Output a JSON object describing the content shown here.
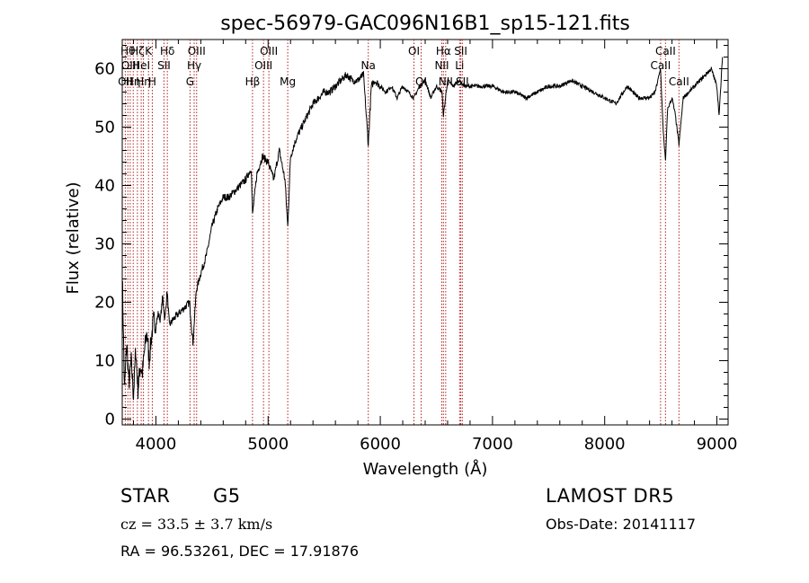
{
  "chart_data": {
    "type": "line",
    "title": "spec-56979-GAC096N16B1_sp15-121.fits",
    "xlabel": "Wavelength (Å)",
    "ylabel": "Flux (relative)",
    "xlim": [
      3700,
      9100
    ],
    "ylim": [
      -1,
      65
    ],
    "xticks": [
      4000,
      5000,
      6000,
      7000,
      8000,
      9000
    ],
    "yticks": [
      0,
      10,
      20,
      30,
      40,
      50,
      60
    ],
    "grid": false,
    "line_color": "#000000",
    "marker_color": "#b22222",
    "series": [
      {
        "x": [
          3700,
          3720,
          3740,
          3760,
          3780,
          3800,
          3820,
          3840,
          3860,
          3880,
          3900,
          3920,
          3940,
          3960,
          3980,
          4000,
          4020,
          4040,
          4060,
          4080,
          4100,
          4120,
          4150,
          4200,
          4250,
          4300,
          4330,
          4360,
          4400,
          4450,
          4500,
          4550,
          4600,
          4650,
          4700,
          4750,
          4800,
          4850,
          4861,
          4900,
          4950,
          5000,
          5050,
          5100,
          5150,
          5175,
          5200,
          5250,
          5300,
          5350,
          5400,
          5450,
          5500,
          5550,
          5600,
          5650,
          5700,
          5750,
          5800,
          5850,
          5893,
          5920,
          5950,
          6000,
          6050,
          6100,
          6150,
          6200,
          6250,
          6300,
          6350,
          6400,
          6450,
          6500,
          6550,
          6563,
          6600,
          6650,
          6700,
          6750,
          6800,
          6900,
          7000,
          7100,
          7200,
          7300,
          7400,
          7500,
          7600,
          7700,
          7800,
          7900,
          8000,
          8100,
          8200,
          8300,
          8400,
          8450,
          8498,
          8520,
          8542,
          8560,
          8600,
          8630,
          8662,
          8700,
          8750,
          8800,
          8850,
          8900,
          8950,
          9000,
          9020,
          9050
        ],
        "y": [
          25,
          5,
          13,
          6,
          10,
          4,
          12,
          5,
          9,
          8,
          12,
          15,
          10,
          14,
          17,
          16,
          18,
          17,
          21,
          17,
          22,
          16,
          17,
          18,
          19,
          20,
          13,
          22,
          25,
          28,
          33,
          36,
          38,
          38,
          39,
          40,
          41,
          43,
          35,
          42,
          45,
          44,
          41,
          46,
          41,
          33,
          45,
          48,
          50,
          52,
          54,
          55,
          56,
          56,
          57,
          58,
          59,
          58,
          58,
          59,
          47,
          57,
          58,
          57,
          56,
          57,
          55,
          57,
          56,
          55,
          57,
          58,
          55,
          57,
          56,
          52,
          58,
          57,
          58,
          57,
          57,
          57,
          57,
          56,
          56,
          55,
          56,
          57,
          57,
          58,
          57,
          56,
          55,
          54,
          57,
          55,
          55,
          56,
          60,
          50,
          44,
          53,
          55,
          52,
          47,
          55,
          56,
          57,
          58,
          59,
          60,
          57,
          52,
          62
        ]
      }
    ],
    "line_markers": [
      {
        "wl": 3727,
        "label": "OII",
        "row": 3
      },
      {
        "wl": 3750,
        "label": "Hθ",
        "row": 1
      },
      {
        "wl": 3771,
        "label": "OIII",
        "row": 2
      },
      {
        "wl": 3798,
        "label": "Hη",
        "row": 3
      },
      {
        "wl": 3835,
        "label": "Hζ",
        "row": 1
      },
      {
        "wl": 3869,
        "label": "HeI",
        "row": 2
      },
      {
        "wl": 3889,
        "label": "Hη",
        "row": 3
      },
      {
        "wl": 3934,
        "label": "K",
        "row": 1
      },
      {
        "wl": 3968,
        "label": "H",
        "row": 3
      },
      {
        "wl": 4072,
        "label": "SII",
        "row": 2
      },
      {
        "wl": 4102,
        "label": "Hδ",
        "row": 1
      },
      {
        "wl": 4304,
        "label": "G",
        "row": 3
      },
      {
        "wl": 4341,
        "label": "Hγ",
        "row": 2
      },
      {
        "wl": 4363,
        "label": "OIII",
        "row": 1
      },
      {
        "wl": 4861,
        "label": "Hβ",
        "row": 3
      },
      {
        "wl": 4959,
        "label": "OIII",
        "row": 2
      },
      {
        "wl": 5007,
        "label": "OIII",
        "row": 1
      },
      {
        "wl": 5175,
        "label": "Mg",
        "row": 3
      },
      {
        "wl": 5893,
        "label": "Na",
        "row": 2
      },
      {
        "wl": 6300,
        "label": "OI",
        "row": 1
      },
      {
        "wl": 6364,
        "label": "OI",
        "row": 3
      },
      {
        "wl": 6548,
        "label": "NII",
        "row": 2
      },
      {
        "wl": 6563,
        "label": "Hα",
        "row": 1
      },
      {
        "wl": 6583,
        "label": "NII",
        "row": 3
      },
      {
        "wl": 6707,
        "label": "Li",
        "row": 2
      },
      {
        "wl": 6717,
        "label": "SII",
        "row": 1
      },
      {
        "wl": 6731,
        "label": "SII",
        "row": 3
      },
      {
        "wl": 8498,
        "label": "CaII",
        "row": 2
      },
      {
        "wl": 8542,
        "label": "CaII",
        "row": 1
      },
      {
        "wl": 8662,
        "label": "CaII",
        "row": 3
      }
    ]
  },
  "info": {
    "class_label": "STAR",
    "subclass": "G5",
    "survey": "LAMOST DR5",
    "cz": "cz = 33.5 ± 3.7 km/s",
    "obs_date": "Obs-Date: 20141117",
    "coords": "RA =  96.53261, DEC =  17.91876"
  }
}
